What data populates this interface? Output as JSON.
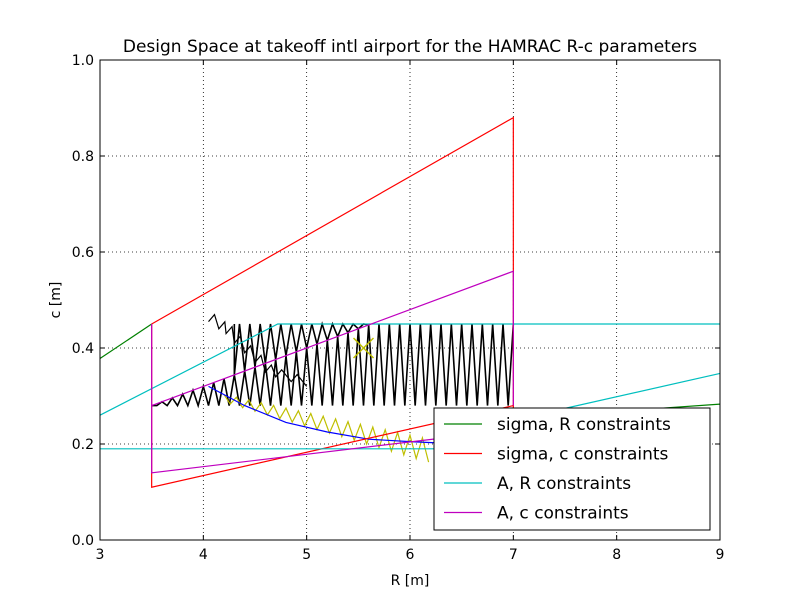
{
  "chart_data": {
    "type": "line",
    "title": "Design Space at takeoff intl airport for the HAMRAC R-c parameters",
    "xlabel": "R [m]",
    "ylabel": "c [m]",
    "xlim": [
      3,
      9
    ],
    "ylim": [
      0.0,
      1.0
    ],
    "xticks": [
      "3",
      "4",
      "5",
      "6",
      "7",
      "8",
      "9"
    ],
    "yticks": [
      "0.0",
      "0.2",
      "0.4",
      "0.6",
      "0.8",
      "1.0"
    ],
    "grid": true,
    "legend_position": "lower-right",
    "series": [
      {
        "name": "sigma, R constraints",
        "color": "#008000",
        "segments": [
          [
            [
              3.0,
              0.378
            ],
            [
              3.5,
              0.45
            ]
          ],
          [
            [
              7.0,
              0.253
            ],
            [
              9.0,
              0.283
            ]
          ]
        ]
      },
      {
        "name": "sigma, c constraints",
        "color": "#ff0000",
        "segments": [
          [
            [
              3.5,
              0.45
            ],
            [
              7.0,
              0.88
            ],
            [
              7.0,
              0.45
            ],
            [
              7.0,
              0.28
            ],
            [
              7.0,
              0.1
            ]
          ],
          [
            [
              3.5,
              0.45
            ],
            [
              3.5,
              0.11
            ],
            [
              7.0,
              0.28
            ]
          ]
        ]
      },
      {
        "name": "A, R constraints",
        "color": "#00bfbf",
        "segments": [
          [
            [
              3.0,
              0.26
            ],
            [
              4.72,
              0.45
            ],
            [
              9.0,
              0.45
            ]
          ],
          [
            [
              3.0,
              0.19
            ],
            [
              7.0,
              0.19
            ]
          ],
          [
            [
              7.0,
              0.25
            ],
            [
              9.0,
              0.347
            ]
          ]
        ]
      },
      {
        "name": "A, c constraints",
        "color": "#bf00bf",
        "segments": [
          [
            [
              3.5,
              0.28
            ],
            [
              7.0,
              0.56
            ],
            [
              7.0,
              0.28
            ]
          ],
          [
            [
              3.5,
              0.45
            ],
            [
              3.5,
              0.14
            ],
            [
              7.0,
              0.23
            ]
          ]
        ]
      }
    ],
    "annotations": [
      {
        "type": "marker",
        "shape": "x",
        "x": 5.55,
        "y": 0.4,
        "color": "#bfbf00"
      }
    ]
  }
}
